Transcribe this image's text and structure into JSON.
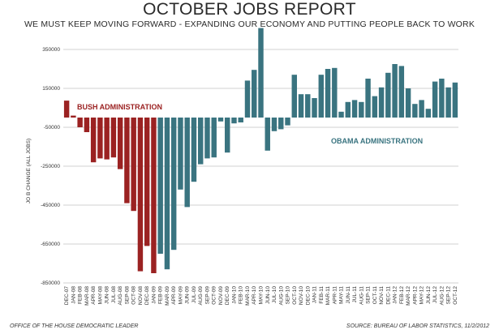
{
  "header": {
    "title": "OCTOBER JOBS REPORT",
    "subtitle": "WE MUST KEEP MOVING FORWARD - EXPANDING OUR ECONOMY AND PUTTING PEOPLE BACK TO WORK"
  },
  "footer": {
    "left": "OFFICE OF THE HOUSE DEMOCRATIC LEADER",
    "right": "SOURCE: BUREAU OF LABOR STATISTICS, 11/2/2012"
  },
  "colors": {
    "bush": "#9b2222",
    "obama": "#3a7480",
    "grid": "#d0d0d0"
  },
  "chart_data": {
    "type": "bar",
    "title": "OCTOBER JOBS REPORT",
    "subtitle": "WE MUST KEEP MOVING FORWARD - EXPANDING OUR ECONOMY AND PUTTING PEOPLE BACK TO WORK",
    "ylabel": "JO B CHANGE (ALL JOBS)",
    "xlabel": "",
    "ylim": [
      -850000,
      400000
    ],
    "yticks": [
      350000,
      150000,
      -50000,
      -250000,
      -450000,
      -650000,
      -850000
    ],
    "ytick_labels": [
      "350000",
      "150000",
      "-50000",
      "-250000",
      "-450000",
      "-650000",
      "-850000"
    ],
    "grid": true,
    "annotations": [
      {
        "text": "BUSH ADMINISTRATION",
        "series": "bush"
      },
      {
        "text": "OBAMA ADMINISTRATION",
        "series": "obama"
      }
    ],
    "categories": [
      "DEC-07",
      "JAN-08",
      "FEB-08",
      "MAR-08",
      "APR-08",
      "MAY-08",
      "JUN-08",
      "JUL-08",
      "AUG-08",
      "SEP-08",
      "OCT-08",
      "NOV-08",
      "DEC-08",
      "JAN-09",
      "FEB-09",
      "MAR-09",
      "APR-09",
      "MAY-09",
      "JUN-09",
      "JUL-09",
      "AUG-09",
      "SEP-09",
      "OCT-09",
      "NOV-09",
      "DEC-09",
      "JAN-10",
      "FEB-10",
      "MAR-10",
      "APR-10",
      "MAY-10",
      "JUN-10",
      "JUL-10",
      "AUG-10",
      "SEP-10",
      "OCT-10",
      "NOV-10",
      "DEC-10",
      "JAN-11",
      "FEB-11",
      "MAR-11",
      "APR-11",
      "MAY-11",
      "JUN-11",
      "JUL-11",
      "AUG-11",
      "SEP-11",
      "OCT-11",
      "NOV-11",
      "DEC-11",
      "JAN-12",
      "FEB-12",
      "MAR-12",
      "APR-12",
      "MAY-12",
      "JUN-12",
      "JUL-12",
      "AUG-12",
      "SEP-12",
      "OCT-12"
    ],
    "tick_labels": [
      "DEC-07",
      "JAN-08",
      "FEB-08",
      "MAR-08",
      "APR-08",
      "MAY-08",
      "JUN-08",
      "JUL-08",
      "AUG-08",
      "SEP-08",
      "OCT-08",
      "NOV-08",
      "DEC-08",
      "JAN-09",
      "FEB-09",
      "MAR-09",
      "APR-09",
      "MAY-09",
      "JUN-09",
      "JUL-09",
      "AUG-09",
      "SEP-09",
      "OCT-09",
      "NOV-09",
      "DEC-09",
      "JAN-10",
      "FEB-10",
      "MAR-10",
      "APR-10",
      "MAY-10",
      "JUN-10",
      "JUL-10",
      "AUG-10",
      "SEP-10",
      "OCT-10",
      "NOV-10",
      "DEC-10",
      "JAN-11",
      "FEB-11",
      "MAR-11",
      "APR-11",
      "MAY-11",
      "JUN-11",
      "JUL-11",
      "AUG-11",
      "SEP-11",
      "OCT-11",
      "NOV-11",
      "DEC-11",
      "JAN-12",
      "FEB-12",
      "MAR-12",
      "APR-12",
      "MAY-12",
      "JUN-12",
      "JUL-12",
      "AUG-12",
      "SEP-12",
      "OCT-12"
    ],
    "series": [
      {
        "name": "BUSH ADMINISTRATION",
        "key": "bush",
        "values": [
          87000,
          10000,
          -50000,
          -75000,
          -230000,
          -210000,
          -215000,
          -205000,
          -265000,
          -440000,
          -480000,
          -790000,
          -660000,
          -800000,
          null,
          null,
          null,
          null,
          null,
          null,
          null,
          null,
          null,
          null,
          null,
          null,
          null,
          null,
          null,
          null,
          null,
          null,
          null,
          null,
          null,
          null,
          null,
          null,
          null,
          null,
          null,
          null,
          null,
          null,
          null,
          null,
          null,
          null,
          null,
          null,
          null,
          null,
          null,
          null,
          null,
          null,
          null,
          null,
          null
        ]
      },
      {
        "name": "OBAMA ADMINISTRATION",
        "key": "obama",
        "values": [
          null,
          null,
          null,
          null,
          null,
          null,
          null,
          null,
          null,
          null,
          null,
          null,
          null,
          null,
          -700000,
          -780000,
          -680000,
          -370000,
          -460000,
          -330000,
          -240000,
          -210000,
          -205000,
          -20000,
          -180000,
          -30000,
          -25000,
          190000,
          245000,
          460000,
          -170000,
          -70000,
          -60000,
          -40000,
          220000,
          120000,
          120000,
          100000,
          220000,
          250000,
          255000,
          30000,
          80000,
          90000,
          80000,
          200000,
          110000,
          155000,
          230000,
          275000,
          265000,
          150000,
          70000,
          90000,
          45000,
          185000,
          200000,
          155000,
          180000
        ]
      }
    ]
  }
}
